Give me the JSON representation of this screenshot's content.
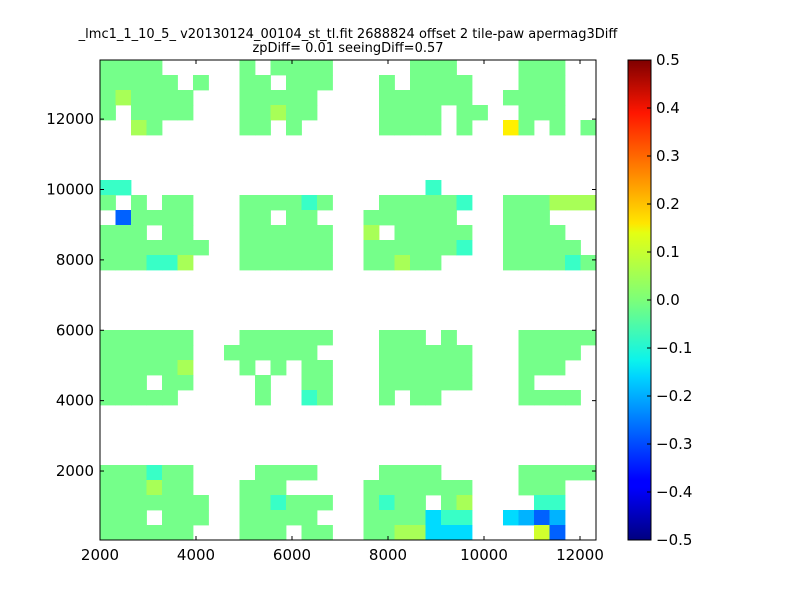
{
  "chart_data": {
    "type": "heatmap",
    "title_line1": "_lmc1_1_10_5_ v20130124_00104_st_tl.fit 2688824 offset 2 tile-paw apermag3Diff",
    "title_line2": "zpDiff= 0.01 seeingDiff=0.57",
    "xlim": [
      2000,
      12333
    ],
    "ylim": [
      40,
      13680
    ],
    "x_ticks": [
      "2000",
      "4000",
      "6000",
      "8000",
      "10000",
      "12000"
    ],
    "x_tick_values": [
      2000,
      4000,
      6000,
      8000,
      10000,
      12000
    ],
    "y_ticks": [
      "2000",
      "4000",
      "6000",
      "8000",
      "10000",
      "12000"
    ],
    "y_tick_values": [
      2000,
      4000,
      6000,
      8000,
      10000,
      12000
    ],
    "colorbar": {
      "min": -0.5,
      "max": 0.5,
      "colormap": "jet",
      "ticks": [
        "0.5",
        "0.4",
        "0.3",
        "0.2",
        "0.1",
        "0.0",
        "−0.1",
        "−0.2",
        "−0.3",
        "−0.4",
        "−0.5"
      ],
      "tick_values": [
        0.5,
        0.4,
        0.3,
        0.2,
        0.1,
        0.0,
        -0.1,
        -0.2,
        -0.3,
        -0.4,
        -0.5
      ]
    },
    "grid_note_codes": {
      "g": -0.01,
      "l": 0.04,
      "k": 0.08,
      "y": 0.14,
      "t": -0.07,
      "c": -0.16,
      "s": -0.2,
      "b": -0.28
    },
    "grid_rows_top_to_bottom": [
      "gggg.....g.gggg.....ggg....ggg..",
      "ggggg.g..gg.ggg...g.gggg...ggg..",
      "glgggg...ggggg....gggggg..gggg..",
      "g.gggg...gglgg....gggg.gg..ggg..",
      "..lg.....gg.g.....gggg.g..yg.g.g",
      "................................",
      "................................",
      "................................",
      "tt...................t..........",
      "g.g.gg...ggggtg...gggggt..ggglll",
      ".bgggg...gg.gg...gggggg...ggg...",
      "ggg.gg...gggggg..l.ggggg..gggg..",
      "ggggggg..gggggg..ggggggt..ggggg.",
      "gggttl...gggggg..gglgg....ggggtg",
      "................................",
      "................................",
      "................................",
      "................................",
      "gggggg...gggggg...ggg.g....ggggg",
      "gggggg..gggggg....gggggg...gggg.",
      "gggggl...g.g.gg...gggggg...ggg..",
      "ggg.gg....g..gg...gggggg...g....",
      "ggggg.....g..tg...g.gg.....gggg.",
      "................................",
      "................................",
      "................................",
      "................................",
      "gggtgg....gggg....gggg.....ggggg",
      "ggglgg...ggg.....ggggggg...ggg..",
      "ggggggg..ggtggg..gtgg.gl....tt..",
      "ggg.ggg..ggggg...ggggctt..csbs..",
      "gggggg...ggg.gg..ggllccc....kb.."
    ]
  }
}
